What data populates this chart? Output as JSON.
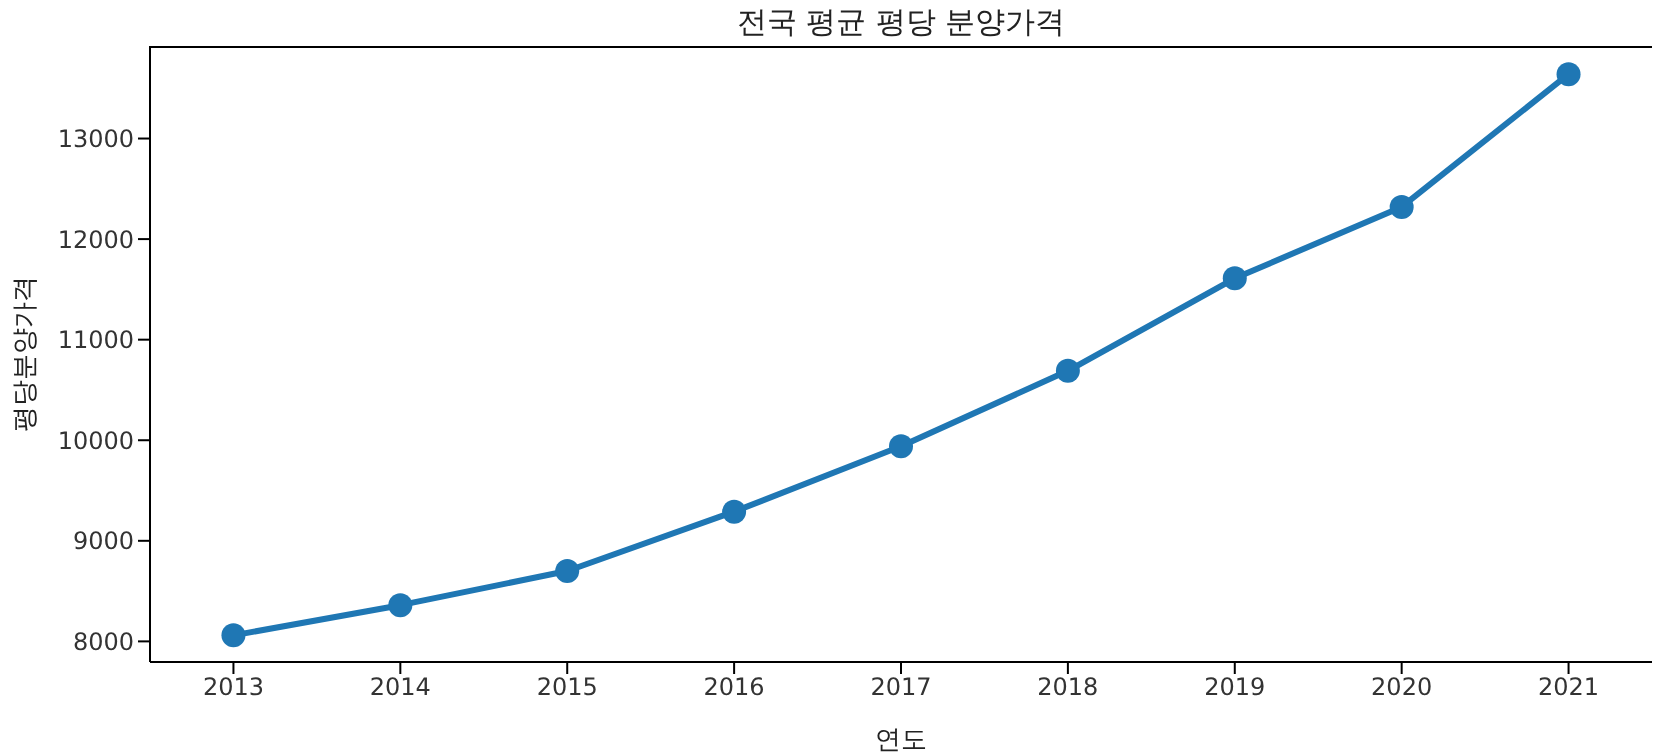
{
  "chart_data": {
    "type": "line",
    "title": "전국 평균 평당 분양가격",
    "xlabel": "연도",
    "ylabel": "평당분양가격",
    "categories": [
      "2013",
      "2014",
      "2015",
      "2016",
      "2017",
      "2018",
      "2019",
      "2020",
      "2021"
    ],
    "series": [
      {
        "color": "#1f77b4",
        "values": [
          8060,
          8360,
          8700,
          9290,
          9940,
          10690,
          11610,
          12320,
          13640
        ]
      }
    ],
    "ylim": [
      7795,
      13920
    ],
    "yticks": [
      8000,
      9000,
      10000,
      11000,
      12000,
      13000
    ],
    "grid": false,
    "legend": false,
    "marker": "circle",
    "line_style": "solid"
  }
}
